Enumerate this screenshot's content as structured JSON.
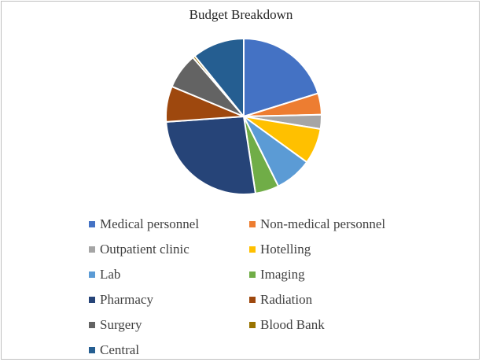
{
  "chart_data": {
    "type": "pie",
    "title": "Budget Breakdown",
    "legend_position": "bottom",
    "series": [
      {
        "label": "Medical personnel",
        "value": 20.5,
        "color": "#4472C4"
      },
      {
        "label": "Non-medical personnel",
        "value": 4.5,
        "color": "#ED7D31"
      },
      {
        "label": "Outpatient clinic",
        "value": 3.0,
        "color": "#A5A5A5"
      },
      {
        "label": "Hotelling",
        "value": 7.5,
        "color": "#FFC000"
      },
      {
        "label": "Lab",
        "value": 7.8,
        "color": "#5B9BD5"
      },
      {
        "label": "Imaging",
        "value": 5.0,
        "color": "#70AD47"
      },
      {
        "label": "Pharmacy",
        "value": 26.7,
        "color": "#264478"
      },
      {
        "label": "Radiation",
        "value": 7.5,
        "color": "#9E480E"
      },
      {
        "label": "Surgery",
        "value": 7.5,
        "color": "#636363"
      },
      {
        "label": "Blood Bank",
        "value": 0.5,
        "color": "#997300"
      },
      {
        "label": "Central",
        "value": 11.0,
        "color": "#255E91"
      }
    ]
  }
}
